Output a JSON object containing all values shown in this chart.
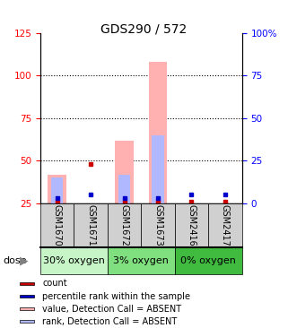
{
  "title": "GDS290 / 572",
  "samples": [
    "GSM1670",
    "GSM1671",
    "GSM1672",
    "GSM1673",
    "GSM2416",
    "GSM2417"
  ],
  "groups": [
    {
      "label": "30% oxygen",
      "indices": [
        0,
        1
      ],
      "color": "#c8f5c8"
    },
    {
      "label": "3% oxygen",
      "indices": [
        2,
        3
      ],
      "color": "#80e080"
    },
    {
      "label": "0% oxygen",
      "indices": [
        4,
        5
      ],
      "color": "#40bb40"
    }
  ],
  "bar_width": 0.55,
  "left_ylim": [
    25,
    125
  ],
  "right_ylim": [
    0,
    100
  ],
  "left_yticks": [
    25,
    50,
    75,
    100,
    125
  ],
  "right_yticks": [
    0,
    25,
    50,
    75,
    100
  ],
  "right_yticklabels": [
    "0",
    "25",
    "50",
    "75",
    "100%"
  ],
  "hlines": [
    50,
    75,
    100
  ],
  "value_absent": [
    42,
    0,
    62,
    108,
    0,
    0
  ],
  "rank_absent": [
    40,
    0,
    42,
    65,
    0,
    0
  ],
  "count_vals": [
    26,
    48,
    26,
    26,
    26,
    26
  ],
  "percentile_vals": [
    28,
    30,
    28,
    28,
    30,
    30
  ],
  "count_color": "#cc0000",
  "percentile_color": "#0000cc",
  "value_absent_color": "#ffb0b0",
  "rank_absent_color": "#b0b8ff",
  "label_fontsize": 7,
  "tick_fontsize": 7.5,
  "title_fontsize": 10,
  "legend_fontsize": 7,
  "dose_text": "dose",
  "group_label_fontsize": 8,
  "xlabel_rotation": 270
}
